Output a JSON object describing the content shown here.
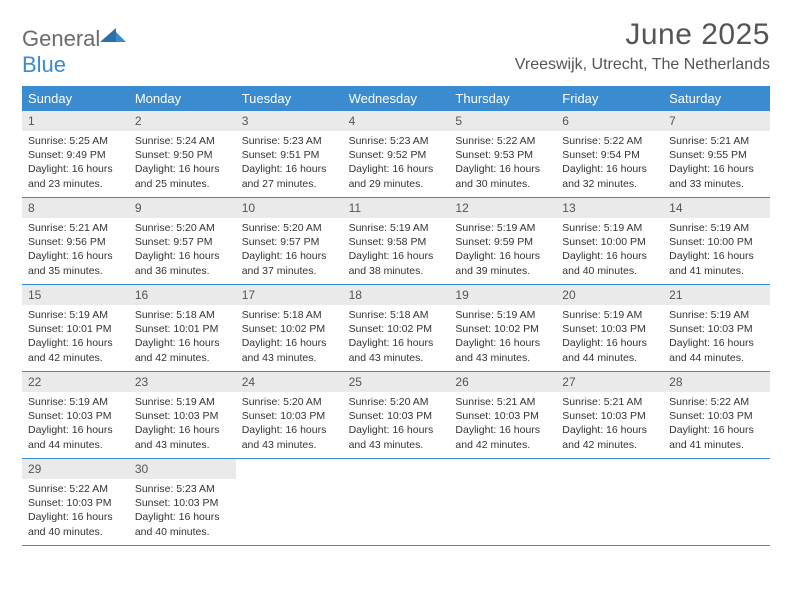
{
  "colors": {
    "header_bg": "#3b8bd0",
    "header_text": "#ffffff",
    "daynum_bg": "#eaeaea",
    "daynum_text": "#555555",
    "border": "#3b8bd0",
    "page_bg": "#ffffff",
    "title_text": "#555555",
    "logo_gray": "#6b6b6b",
    "logo_blue": "#3b8bd0"
  },
  "logo": {
    "part1": "General",
    "part2": "Blue"
  },
  "title": "June 2025",
  "subtitle": "Vreeswijk, Utrecht, The Netherlands",
  "weekdays": [
    "Sunday",
    "Monday",
    "Tuesday",
    "Wednesday",
    "Thursday",
    "Friday",
    "Saturday"
  ],
  "weeks": [
    [
      {
        "n": "1",
        "sr": "Sunrise: 5:25 AM",
        "ss": "Sunset: 9:49 PM",
        "dl1": "Daylight: 16 hours",
        "dl2": "and 23 minutes."
      },
      {
        "n": "2",
        "sr": "Sunrise: 5:24 AM",
        "ss": "Sunset: 9:50 PM",
        "dl1": "Daylight: 16 hours",
        "dl2": "and 25 minutes."
      },
      {
        "n": "3",
        "sr": "Sunrise: 5:23 AM",
        "ss": "Sunset: 9:51 PM",
        "dl1": "Daylight: 16 hours",
        "dl2": "and 27 minutes."
      },
      {
        "n": "4",
        "sr": "Sunrise: 5:23 AM",
        "ss": "Sunset: 9:52 PM",
        "dl1": "Daylight: 16 hours",
        "dl2": "and 29 minutes."
      },
      {
        "n": "5",
        "sr": "Sunrise: 5:22 AM",
        "ss": "Sunset: 9:53 PM",
        "dl1": "Daylight: 16 hours",
        "dl2": "and 30 minutes."
      },
      {
        "n": "6",
        "sr": "Sunrise: 5:22 AM",
        "ss": "Sunset: 9:54 PM",
        "dl1": "Daylight: 16 hours",
        "dl2": "and 32 minutes."
      },
      {
        "n": "7",
        "sr": "Sunrise: 5:21 AM",
        "ss": "Sunset: 9:55 PM",
        "dl1": "Daylight: 16 hours",
        "dl2": "and 33 minutes."
      }
    ],
    [
      {
        "n": "8",
        "sr": "Sunrise: 5:21 AM",
        "ss": "Sunset: 9:56 PM",
        "dl1": "Daylight: 16 hours",
        "dl2": "and 35 minutes."
      },
      {
        "n": "9",
        "sr": "Sunrise: 5:20 AM",
        "ss": "Sunset: 9:57 PM",
        "dl1": "Daylight: 16 hours",
        "dl2": "and 36 minutes."
      },
      {
        "n": "10",
        "sr": "Sunrise: 5:20 AM",
        "ss": "Sunset: 9:57 PM",
        "dl1": "Daylight: 16 hours",
        "dl2": "and 37 minutes."
      },
      {
        "n": "11",
        "sr": "Sunrise: 5:19 AM",
        "ss": "Sunset: 9:58 PM",
        "dl1": "Daylight: 16 hours",
        "dl2": "and 38 minutes."
      },
      {
        "n": "12",
        "sr": "Sunrise: 5:19 AM",
        "ss": "Sunset: 9:59 PM",
        "dl1": "Daylight: 16 hours",
        "dl2": "and 39 minutes."
      },
      {
        "n": "13",
        "sr": "Sunrise: 5:19 AM",
        "ss": "Sunset: 10:00 PM",
        "dl1": "Daylight: 16 hours",
        "dl2": "and 40 minutes."
      },
      {
        "n": "14",
        "sr": "Sunrise: 5:19 AM",
        "ss": "Sunset: 10:00 PM",
        "dl1": "Daylight: 16 hours",
        "dl2": "and 41 minutes."
      }
    ],
    [
      {
        "n": "15",
        "sr": "Sunrise: 5:19 AM",
        "ss": "Sunset: 10:01 PM",
        "dl1": "Daylight: 16 hours",
        "dl2": "and 42 minutes."
      },
      {
        "n": "16",
        "sr": "Sunrise: 5:18 AM",
        "ss": "Sunset: 10:01 PM",
        "dl1": "Daylight: 16 hours",
        "dl2": "and 42 minutes."
      },
      {
        "n": "17",
        "sr": "Sunrise: 5:18 AM",
        "ss": "Sunset: 10:02 PM",
        "dl1": "Daylight: 16 hours",
        "dl2": "and 43 minutes."
      },
      {
        "n": "18",
        "sr": "Sunrise: 5:18 AM",
        "ss": "Sunset: 10:02 PM",
        "dl1": "Daylight: 16 hours",
        "dl2": "and 43 minutes."
      },
      {
        "n": "19",
        "sr": "Sunrise: 5:19 AM",
        "ss": "Sunset: 10:02 PM",
        "dl1": "Daylight: 16 hours",
        "dl2": "and 43 minutes."
      },
      {
        "n": "20",
        "sr": "Sunrise: 5:19 AM",
        "ss": "Sunset: 10:03 PM",
        "dl1": "Daylight: 16 hours",
        "dl2": "and 44 minutes."
      },
      {
        "n": "21",
        "sr": "Sunrise: 5:19 AM",
        "ss": "Sunset: 10:03 PM",
        "dl1": "Daylight: 16 hours",
        "dl2": "and 44 minutes."
      }
    ],
    [
      {
        "n": "22",
        "sr": "Sunrise: 5:19 AM",
        "ss": "Sunset: 10:03 PM",
        "dl1": "Daylight: 16 hours",
        "dl2": "and 44 minutes."
      },
      {
        "n": "23",
        "sr": "Sunrise: 5:19 AM",
        "ss": "Sunset: 10:03 PM",
        "dl1": "Daylight: 16 hours",
        "dl2": "and 43 minutes."
      },
      {
        "n": "24",
        "sr": "Sunrise: 5:20 AM",
        "ss": "Sunset: 10:03 PM",
        "dl1": "Daylight: 16 hours",
        "dl2": "and 43 minutes."
      },
      {
        "n": "25",
        "sr": "Sunrise: 5:20 AM",
        "ss": "Sunset: 10:03 PM",
        "dl1": "Daylight: 16 hours",
        "dl2": "and 43 minutes."
      },
      {
        "n": "26",
        "sr": "Sunrise: 5:21 AM",
        "ss": "Sunset: 10:03 PM",
        "dl1": "Daylight: 16 hours",
        "dl2": "and 42 minutes."
      },
      {
        "n": "27",
        "sr": "Sunrise: 5:21 AM",
        "ss": "Sunset: 10:03 PM",
        "dl1": "Daylight: 16 hours",
        "dl2": "and 42 minutes."
      },
      {
        "n": "28",
        "sr": "Sunrise: 5:22 AM",
        "ss": "Sunset: 10:03 PM",
        "dl1": "Daylight: 16 hours",
        "dl2": "and 41 minutes."
      }
    ],
    [
      {
        "n": "29",
        "sr": "Sunrise: 5:22 AM",
        "ss": "Sunset: 10:03 PM",
        "dl1": "Daylight: 16 hours",
        "dl2": "and 40 minutes."
      },
      {
        "n": "30",
        "sr": "Sunrise: 5:23 AM",
        "ss": "Sunset: 10:03 PM",
        "dl1": "Daylight: 16 hours",
        "dl2": "and 40 minutes."
      },
      {
        "empty": true
      },
      {
        "empty": true
      },
      {
        "empty": true
      },
      {
        "empty": true
      },
      {
        "empty": true
      }
    ]
  ]
}
